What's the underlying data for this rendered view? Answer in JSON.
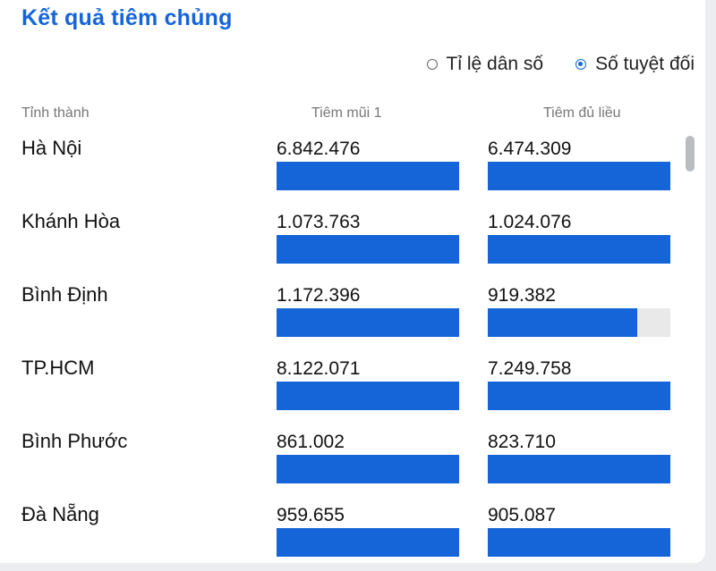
{
  "title": "Kết quả tiêm chủng",
  "mode_options": [
    {
      "label": "Tỉ lệ dân số",
      "selected": false
    },
    {
      "label": "Số tuyệt đối",
      "selected": true
    }
  ],
  "columns": {
    "province": "Tỉnh thành",
    "dose1": "Tiêm mũi 1",
    "full": "Tiêm đủ liều"
  },
  "colors": {
    "accent": "#1565d8",
    "track": "#e9e9e9"
  },
  "rows": [
    {
      "province": "Hà Nội",
      "dose1": "6.842.476",
      "dose1_fill": 1.0,
      "full": "6.474.309",
      "full_fill": 1.0
    },
    {
      "province": "Khánh Hòa",
      "dose1": "1.073.763",
      "dose1_fill": 1.0,
      "full": "1.024.076",
      "full_fill": 1.0
    },
    {
      "province": "Bình Định",
      "dose1": "1.172.396",
      "dose1_fill": 1.0,
      "full": "919.382",
      "full_fill": 0.82
    },
    {
      "province": "TP.HCM",
      "dose1": "8.122.071",
      "dose1_fill": 1.0,
      "full": "7.249.758",
      "full_fill": 1.0
    },
    {
      "province": "Bình Phước",
      "dose1": "861.002",
      "dose1_fill": 1.0,
      "full": "823.710",
      "full_fill": 1.0
    },
    {
      "province": "Đà Nẵng",
      "dose1": "959.655",
      "dose1_fill": 1.0,
      "full": "905.087",
      "full_fill": 1.0
    }
  ]
}
